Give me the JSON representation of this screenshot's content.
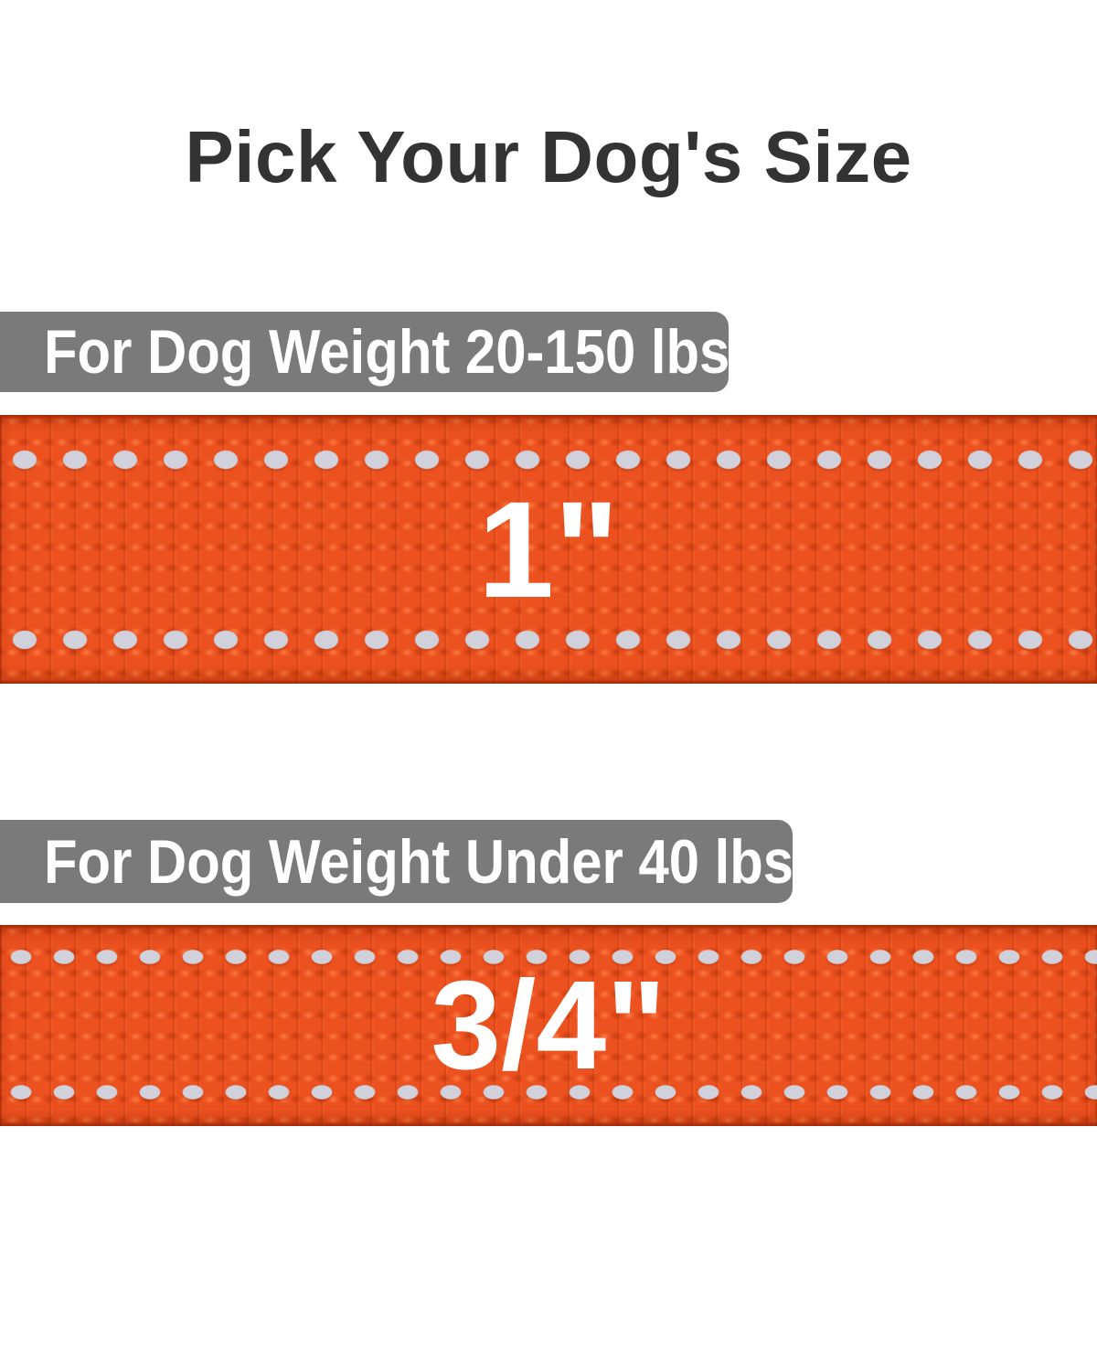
{
  "page": {
    "title": "Pick Your Dog's Size",
    "background_color": "#ffffff",
    "title_color": "#333333"
  },
  "sections": [
    {
      "label": "For Dog Weight 20-150 lbs",
      "size": "1\"",
      "bar_color": "#7a7a7a",
      "bar_text_color": "#ffffff",
      "strap_color": "#ec5120",
      "stitch_color": "#d0d1da"
    },
    {
      "label": "For Dog Weight Under 40 lbs",
      "size": "3/4\"",
      "bar_color": "#7a7a7a",
      "bar_text_color": "#ffffff",
      "strap_color": "#ec5120",
      "stitch_color": "#d0d1da"
    }
  ]
}
